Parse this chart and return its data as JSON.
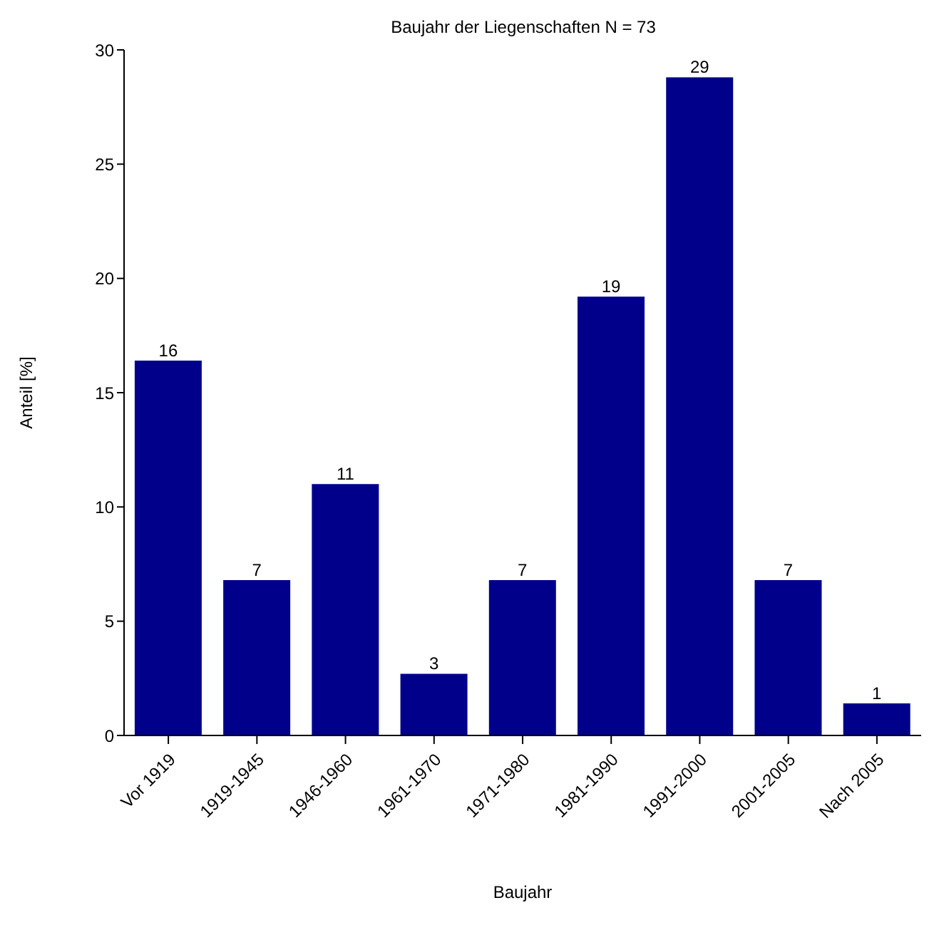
{
  "chart_data": {
    "type": "bar",
    "title": "Baujahr der Liegenschaften N = 73",
    "xlabel": "Baujahr",
    "ylabel": "Anteil [%]",
    "categories": [
      "Vor 1919",
      "1919-1945",
      "1946-1960",
      "1961-1970",
      "1971-1980",
      "1981-1990",
      "1991-2000",
      "2001-2005",
      "Nach 2005"
    ],
    "values": [
      16.4,
      6.8,
      11.0,
      2.7,
      6.8,
      19.2,
      28.8,
      6.8,
      1.4
    ],
    "value_labels": [
      "16",
      "7",
      "11",
      "3",
      "7",
      "19",
      "29",
      "7",
      "1"
    ],
    "color": "#00008b",
    "ylim": [
      0,
      30
    ],
    "yticks": [
      0,
      5,
      10,
      15,
      20,
      25,
      30
    ],
    "grid": false
  }
}
